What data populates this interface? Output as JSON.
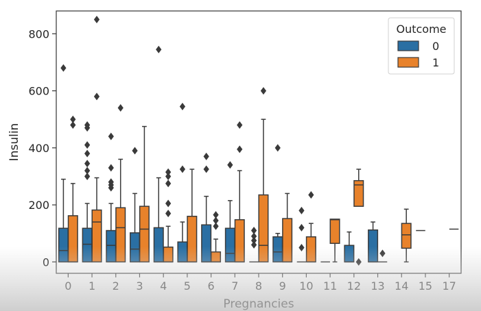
{
  "colors": {
    "outcome_0": "#2a6fa3",
    "outcome_1": "#e8822b",
    "outline": "#3a3a3a"
  },
  "chart_data": {
    "type": "boxplot",
    "xlabel": "Pregnancies",
    "ylabel": "Insulin",
    "ylim": [
      -40,
      880
    ],
    "yticks": [
      0,
      200,
      400,
      600,
      800
    ],
    "categories": [
      "0",
      "1",
      "2",
      "3",
      "4",
      "5",
      "6",
      "7",
      "8",
      "9",
      "10",
      "11",
      "12",
      "13",
      "14",
      "15",
      "17"
    ],
    "legend": {
      "title": "Outcome",
      "position": "top-right",
      "labels": [
        "0",
        "1"
      ]
    },
    "series": [
      {
        "name": "0",
        "color": "#2a6fa3",
        "boxes": [
          {
            "category": "0",
            "min": 0,
            "q1": 0,
            "median": 40,
            "q3": 118,
            "max": 290,
            "outliers": [
              680
            ]
          },
          {
            "category": "1",
            "min": 0,
            "q1": 0,
            "median": 62,
            "q3": 118,
            "max": 205,
            "outliers": [
              300,
              320,
              345,
              380,
              410,
              470,
              480
            ]
          },
          {
            "category": "2",
            "min": 0,
            "q1": 0,
            "median": 58,
            "q3": 110,
            "max": 205,
            "outliers": [
              260,
              270,
              280,
              330,
              440
            ]
          },
          {
            "category": "3",
            "min": 0,
            "q1": 0,
            "median": 45,
            "q3": 102,
            "max": 240,
            "outliers": [
              390
            ]
          },
          {
            "category": "4",
            "min": 0,
            "q1": 0,
            "median": 0,
            "q3": 120,
            "max": 295,
            "outliers": [
              745
            ]
          },
          {
            "category": "5",
            "min": 0,
            "q1": 0,
            "median": 0,
            "q3": 70,
            "max": 140,
            "outliers": [
              325,
              545
            ]
          },
          {
            "category": "6",
            "min": 0,
            "q1": 0,
            "median": 0,
            "q3": 130,
            "max": 230,
            "outliers": [
              325,
              370
            ]
          },
          {
            "category": "7",
            "min": 0,
            "q1": 0,
            "median": 30,
            "q3": 118,
            "max": 215,
            "outliers": [
              340
            ]
          },
          {
            "category": "8",
            "min": 0,
            "q1": 0,
            "median": 0,
            "q3": 0,
            "max": 0,
            "outliers": [
              60,
              75,
              90,
              110
            ]
          },
          {
            "category": "9",
            "min": 0,
            "q1": 0,
            "median": 35,
            "q3": 88,
            "max": 100,
            "outliers": [
              400
            ]
          },
          {
            "category": "10",
            "min": 0,
            "q1": 0,
            "median": 0,
            "q3": 0,
            "max": 0,
            "outliers": [
              50,
              120,
              180
            ]
          },
          {
            "category": "11",
            "min": 0,
            "q1": 0,
            "median": 0,
            "q3": 0,
            "max": 0,
            "outliers": []
          },
          {
            "category": "12",
            "min": 0,
            "q1": 0,
            "median": 0,
            "q3": 58,
            "max": 105,
            "outliers": []
          },
          {
            "category": "13",
            "min": 0,
            "q1": 0,
            "median": 0,
            "q3": 112,
            "max": 140,
            "outliers": []
          },
          {
            "category": "15",
            "min": 110,
            "q1": 110,
            "median": 110,
            "q3": 110,
            "max": 110,
            "outliers": []
          }
        ]
      },
      {
        "name": "1",
        "color": "#e8822b",
        "boxes": [
          {
            "category": "0",
            "min": 0,
            "q1": 0,
            "median": 0,
            "q3": 162,
            "max": 275,
            "outliers": [
              480,
              500
            ]
          },
          {
            "category": "1",
            "min": 0,
            "q1": 0,
            "median": 140,
            "q3": 182,
            "max": 295,
            "outliers": [
              580,
              850
            ]
          },
          {
            "category": "2",
            "min": 0,
            "q1": 0,
            "median": 120,
            "q3": 190,
            "max": 360,
            "outliers": [
              540
            ]
          },
          {
            "category": "3",
            "min": 0,
            "q1": 0,
            "median": 115,
            "q3": 195,
            "max": 475,
            "outliers": []
          },
          {
            "category": "4",
            "min": 0,
            "q1": 0,
            "median": 0,
            "q3": 52,
            "max": 125,
            "outliers": [
              170,
              205,
              275,
              300,
              315
            ]
          },
          {
            "category": "5",
            "min": 0,
            "q1": 0,
            "median": 0,
            "q3": 160,
            "max": 325,
            "outliers": []
          },
          {
            "category": "6",
            "min": 0,
            "q1": 0,
            "median": 0,
            "q3": 35,
            "max": 80,
            "outliers": [
              125,
              145,
              165
            ]
          },
          {
            "category": "7",
            "min": 0,
            "q1": 0,
            "median": 0,
            "q3": 148,
            "max": 320,
            "outliers": [
              395,
              480
            ]
          },
          {
            "category": "8",
            "min": 0,
            "q1": 0,
            "median": 58,
            "q3": 235,
            "max": 500,
            "outliers": [
              600
            ]
          },
          {
            "category": "9",
            "min": 0,
            "q1": 0,
            "median": 0,
            "q3": 152,
            "max": 240,
            "outliers": []
          },
          {
            "category": "10",
            "min": 0,
            "q1": 0,
            "median": 0,
            "q3": 88,
            "max": 135,
            "outliers": [
              235
            ]
          },
          {
            "category": "11",
            "min": 0,
            "q1": 65,
            "median": 148,
            "q3": 150,
            "max": 150,
            "outliers": []
          },
          {
            "category": "12",
            "min": 195,
            "q1": 195,
            "median": 270,
            "q3": 285,
            "max": 325,
            "outliers": [
              0
            ]
          },
          {
            "category": "13",
            "min": 0,
            "q1": 0,
            "median": 0,
            "q3": 0,
            "max": 0,
            "outliers": [
              30
            ]
          },
          {
            "category": "14",
            "min": 0,
            "q1": 48,
            "median": 95,
            "q3": 135,
            "max": 185,
            "outliers": []
          },
          {
            "category": "17",
            "min": 115,
            "q1": 115,
            "median": 115,
            "q3": 115,
            "max": 115,
            "outliers": []
          }
        ]
      }
    ]
  }
}
